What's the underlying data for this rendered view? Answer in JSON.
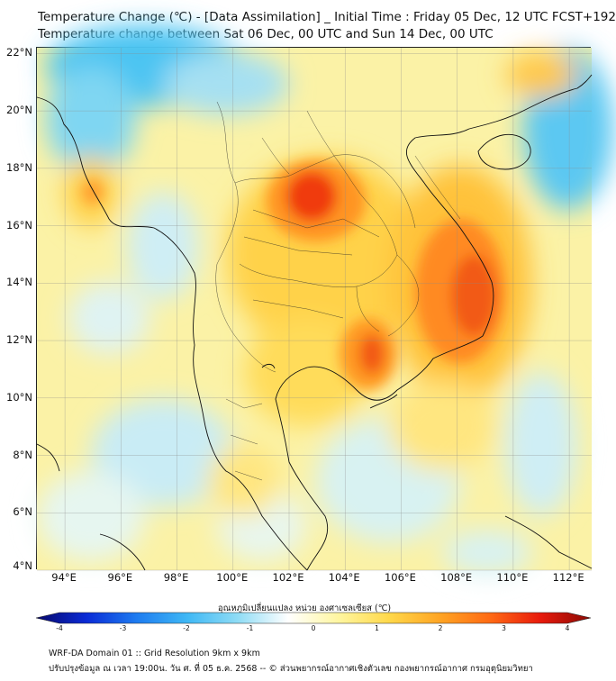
{
  "header": {
    "title": "Temperature Change (℃) - [Data Assimilation] _ Initial Time : Friday 05 Dec, 12 UTC FCST+192",
    "subtitle": "Temperature change between Sat 06 Dec, 00 UTC and Sun 14 Dec, 00 UTC"
  },
  "axes": {
    "lat_labels": [
      "22°N",
      "20°N",
      "18°N",
      "16°N",
      "14°N",
      "12°N",
      "10°N",
      "8°N",
      "6°N",
      "4°N"
    ],
    "lat_values": [
      22,
      20,
      18,
      16,
      14,
      12,
      10,
      8,
      6,
      4
    ],
    "lon_labels": [
      "94°E",
      "96°E",
      "98°E",
      "100°E",
      "102°E",
      "104°E",
      "106°E",
      "108°E",
      "110°E",
      "112°E"
    ],
    "lon_values": [
      94,
      96,
      98,
      100,
      102,
      104,
      106,
      108,
      110,
      112
    ],
    "lon_range": [
      93,
      112.8
    ],
    "lat_range": [
      4,
      22.2
    ]
  },
  "colorbar": {
    "label": "อุณหภูมิเปลี่ยนแปลง หน่วย องศาเซลเซียส (℃)",
    "ticks": [
      "-4",
      "-3",
      "-2",
      "-1",
      "0",
      "1",
      "2",
      "3",
      "4"
    ],
    "range": [
      -4,
      4
    ],
    "colors": [
      "#08086b",
      "#0a2bd6",
      "#1e7cf0",
      "#3fb8f5",
      "#8fdcf5",
      "#ffffff",
      "#fff6a0",
      "#ffd84a",
      "#ffa524",
      "#ff6a14",
      "#e81a0c",
      "#8a0a04"
    ]
  },
  "footer": {
    "line1": "WRF-DA Domain 01 :: Grid Resolution 9km x 9km",
    "line2": "ปรับปรุงข้อมูล ณ เวลา 19:00น. วัน ศ. ที่ 05 ธ.ค. 2568 -- © ส่วนพยากรณ์อากาศเชิงตัวเลข กองพยากรณ์อากาศ กรมอุตุนิยมวิทยา"
  }
}
